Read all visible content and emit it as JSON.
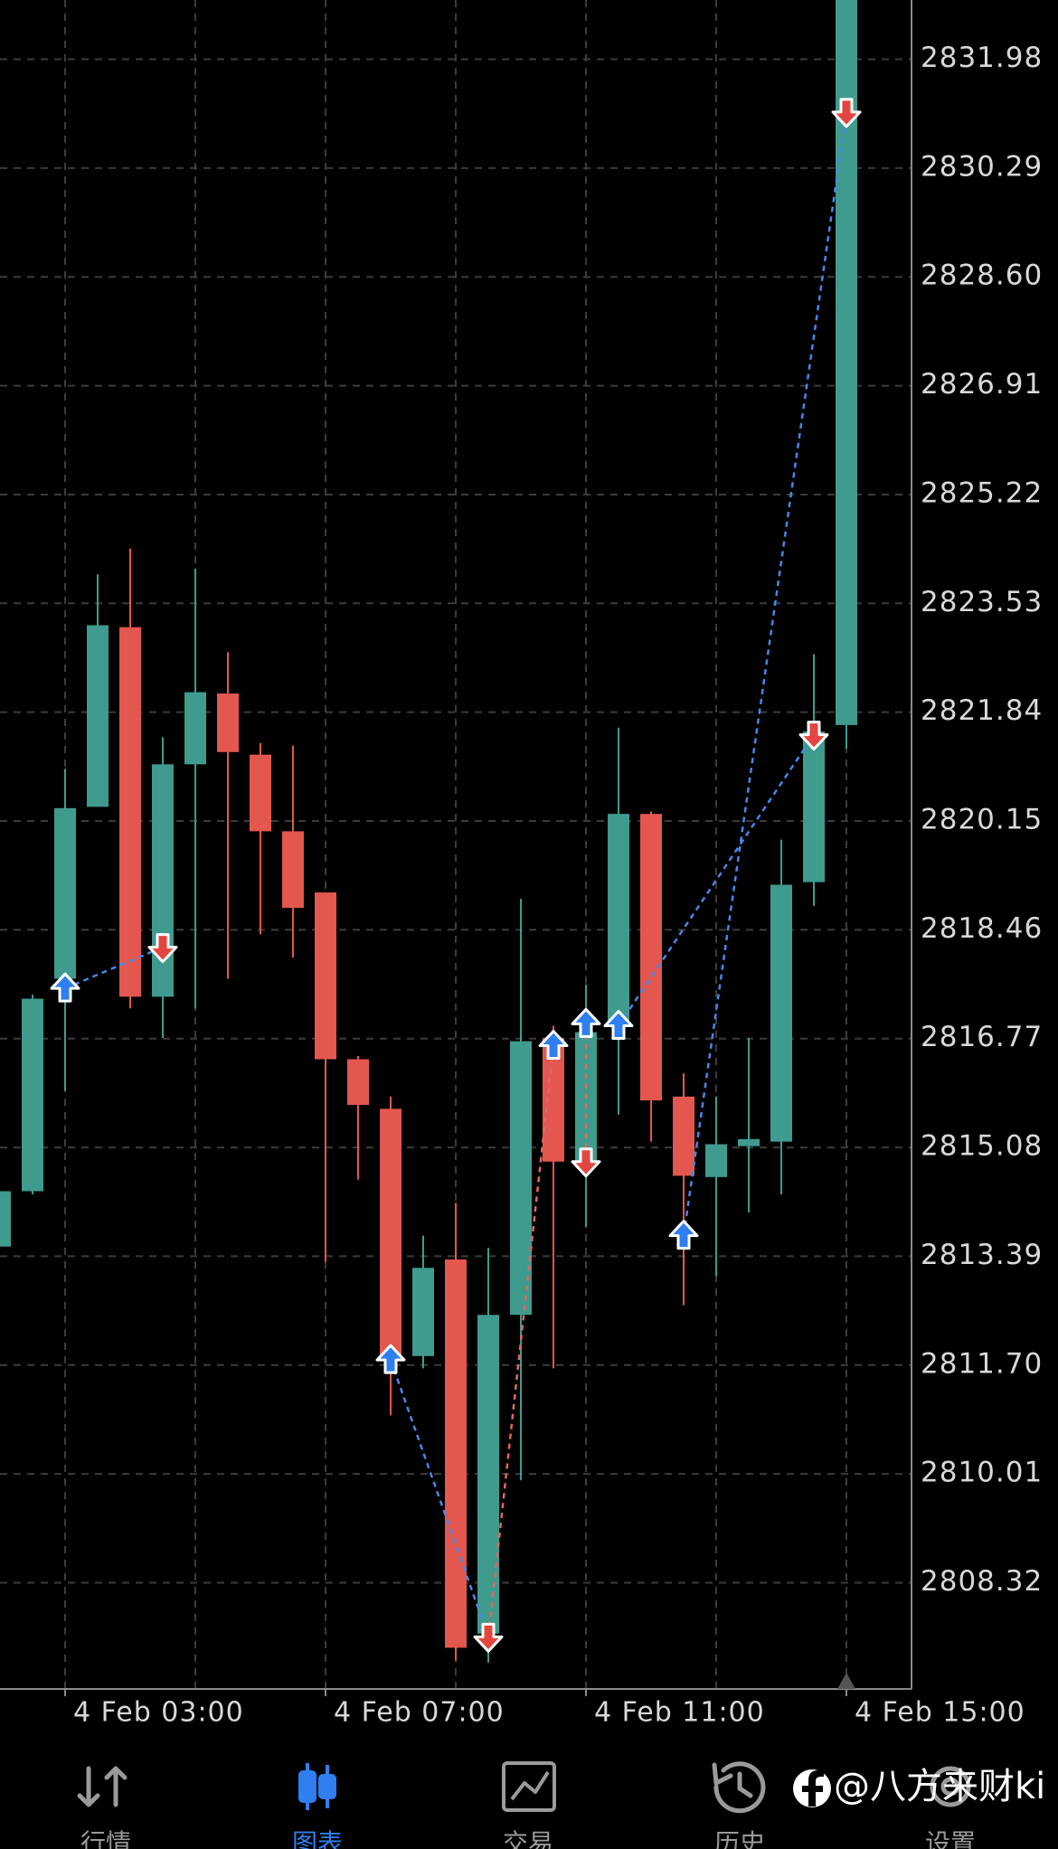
{
  "chart_data": {
    "type": "candlestick",
    "categories": [
      null,
      null,
      "4 Feb 03:00",
      null,
      null,
      null,
      null,
      null,
      null,
      null,
      "4 Feb 07:00",
      null,
      null,
      null,
      null,
      null,
      null,
      null,
      "4 Feb 11:00",
      null,
      null,
      null,
      null,
      null,
      null,
      null,
      "4 Feb 15:00"
    ],
    "open": [
      2813.54,
      2814.4,
      2817.7,
      2820.37,
      2823.16,
      2817.42,
      2821.03,
      2822.13,
      2821.18,
      2819.99,
      2819.04,
      2816.45,
      2815.68,
      2811.84,
      2813.34,
      2807.53,
      2812.48,
      2816.78,
      2814.86,
      2816.97,
      2820.26,
      2815.87,
      2814.62,
      2815.1,
      2815.17,
      2819.2,
      2821.64
    ],
    "high": [
      2814.4,
      2817.45,
      2820.96,
      2823.98,
      2824.38,
      2821.45,
      2824.07,
      2822.77,
      2821.36,
      2821.32,
      2819.04,
      2816.5,
      2815.87,
      2813.71,
      2814.22,
      2813.52,
      2818.94,
      2816.97,
      2817.61,
      2821.6,
      2820.3,
      2816.23,
      2815.87,
      2816.78,
      2819.86,
      2822.74,
      2833.4
    ],
    "low": [
      2813.54,
      2814.35,
      2815.96,
      2820.37,
      2817.24,
      2816.78,
      2817.24,
      2817.7,
      2818.39,
      2818.03,
      2813.3,
      2814.58,
      2810.92,
      2811.65,
      2807.11,
      2807.08,
      2809.91,
      2811.65,
      2813.85,
      2815.59,
      2815.17,
      2812.63,
      2813.08,
      2814.07,
      2814.35,
      2818.83,
      2821.27
    ],
    "close": [
      2814.4,
      2817.39,
      2820.35,
      2823.19,
      2817.42,
      2821.03,
      2822.15,
      2821.22,
      2819.99,
      2818.8,
      2816.45,
      2815.74,
      2811.84,
      2813.21,
      2807.31,
      2812.48,
      2816.73,
      2814.86,
      2816.87,
      2820.26,
      2815.81,
      2814.64,
      2815.13,
      2815.21,
      2819.16,
      2821.54,
      2833.2
    ],
    "up_color": "#3f9b8d",
    "down_color": "#e3574f",
    "ylim": [
      2806.67,
      2832.9
    ],
    "yticks": [
      2831.98,
      2830.29,
      {
        "value": 2828.6,
        "label": "2828.60"
      },
      2826.91,
      2825.22,
      2823.53,
      2821.84,
      2820.15,
      2818.46,
      2816.77,
      2815.08,
      2813.39,
      {
        "value": 2811.7,
        "label": "2811.70"
      },
      2810.01,
      2808.32
    ],
    "grid": true,
    "buy_color": "#2f7ff0",
    "sell_color": "#e3463f",
    "trades": [
      {
        "x": 2,
        "price": 2817.55,
        "side": "buy"
      },
      {
        "x": 5,
        "price": 2818.19,
        "side": "sell"
      },
      {
        "x": 12,
        "price": 2811.78,
        "side": "buy"
      },
      {
        "x": 15,
        "price": 2807.48,
        "side": "sell"
      },
      {
        "x": 17,
        "price": 2816.66,
        "side": "buy"
      },
      {
        "x": 18,
        "price": 2817.0,
        "side": "buy"
      },
      {
        "x": 18,
        "price": 2814.86,
        "side": "sell"
      },
      {
        "x": 19,
        "price": 2816.97,
        "side": "buy"
      },
      {
        "x": 21,
        "price": 2813.71,
        "side": "buy"
      },
      {
        "x": 25,
        "price": 2821.49,
        "side": "sell"
      },
      {
        "x": 26,
        "price": 2831.16,
        "side": "sell"
      }
    ],
    "links": [
      {
        "from": 0,
        "to": 1,
        "color": "#4a86e8"
      },
      {
        "from": 2,
        "to": 3,
        "color": "#4a86e8"
      },
      {
        "from": 3,
        "to": 4,
        "color": "#e06666"
      },
      {
        "from": 5,
        "to": 6,
        "color": "#e06666"
      },
      {
        "from": 7,
        "to": 9,
        "color": "#4a86e8"
      },
      {
        "from": 8,
        "to": 10,
        "color": "#4a86e8"
      }
    ]
  },
  "toolbar": {
    "tabs": [
      {
        "label": "行情"
      },
      {
        "label": "图表"
      },
      {
        "label": "交易"
      },
      {
        "label": "历史"
      },
      {
        "label": "设置"
      }
    ],
    "active": 1,
    "active_color": "#2f7ff0",
    "color": "#9a9a9a"
  },
  "watermark": "@八方来财ki"
}
